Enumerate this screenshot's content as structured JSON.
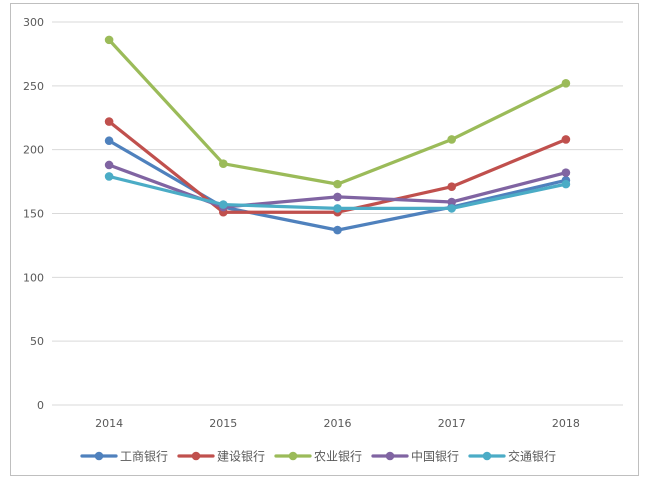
{
  "chart_data": {
    "type": "line",
    "title": "",
    "xlabel": "",
    "ylabel": "",
    "categories": [
      "2014",
      "2015",
      "2016",
      "2017",
      "2018"
    ],
    "ylim": [
      0,
      300
    ],
    "yticks": [
      0,
      50,
      100,
      150,
      200,
      250,
      300
    ],
    "grid": true,
    "legend_position": "bottom",
    "series": [
      {
        "name": "工商银行",
        "color": "#4f81bd",
        "values": [
          207,
          155,
          137,
          155,
          176
        ]
      },
      {
        "name": "建设银行",
        "color": "#c0504d",
        "values": [
          222,
          151,
          151,
          171,
          208
        ]
      },
      {
        "name": "农业银行",
        "color": "#9bbb59",
        "values": [
          286,
          189,
          173,
          208,
          252
        ]
      },
      {
        "name": "中国银行",
        "color": "#8064a2",
        "values": [
          188,
          155,
          163,
          159,
          182
        ]
      },
      {
        "name": "交通银行",
        "color": "#4bacc6",
        "values": [
          179,
          157,
          154,
          154,
          173
        ]
      }
    ]
  }
}
